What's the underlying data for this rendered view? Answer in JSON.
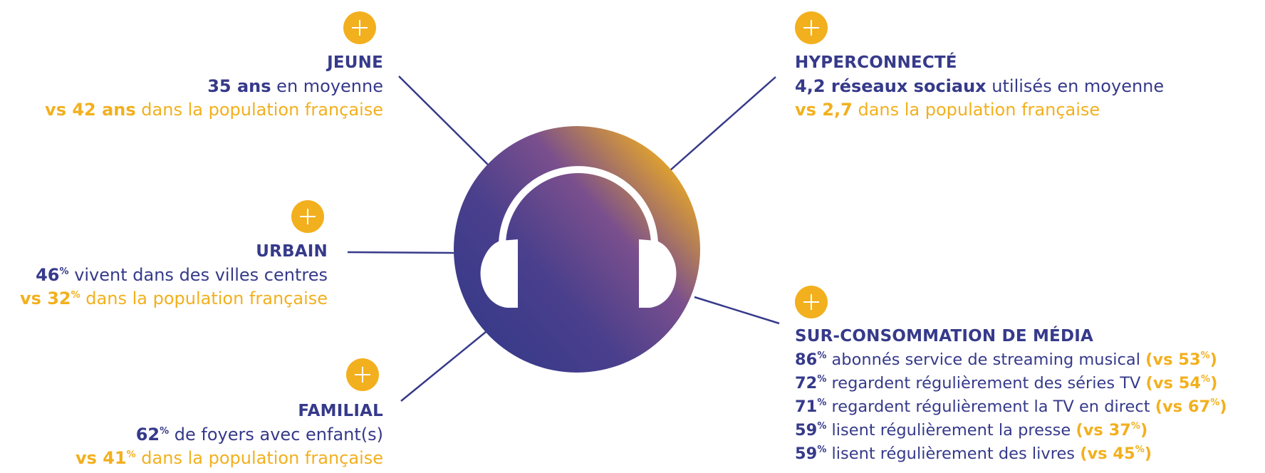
{
  "colors": {
    "navy": "#363a8a",
    "gold": "#f2b01e",
    "purple": "#7a4f8d"
  },
  "icons": {
    "center": "headphones-icon",
    "plus": "plus-icon"
  },
  "jeune": {
    "title": "JEUNE",
    "line1_bold": "35 ans",
    "line1_rest": "en moyenne",
    "line2_bold": "vs 42 ans",
    "line2_rest": "dans la population française"
  },
  "urbain": {
    "title": "URBAIN",
    "line1_value": "46",
    "line1_unit": "%",
    "line1_rest": "vivent dans des villes centres",
    "line2_prefix": "vs 32",
    "line2_unit": "%",
    "line2_rest": "dans la population française"
  },
  "familial": {
    "title": "FAMILIAL",
    "line1_value": "62",
    "line1_unit": "%",
    "line1_rest": "de foyers avec enfant(s)",
    "line2_prefix": "vs 41",
    "line2_unit": "%",
    "line2_rest": "dans la population française"
  },
  "hyperconnecte": {
    "title": "HYPERCONNECTÉ",
    "line1_bold": "4,2 réseaux sociaux",
    "line1_rest": "utilisés en moyenne",
    "line2_bold": "vs 2,7",
    "line2_rest": "dans la population française"
  },
  "media": {
    "title": "SUR-CONSOMMATION DE MÉDIA",
    "rows": [
      {
        "value": "86",
        "unit": "%",
        "text": "abonnés service de streaming musical",
        "cmp_prefix": "(vs 53",
        "cmp_unit": "%",
        "cmp_suffix": ")"
      },
      {
        "value": "72",
        "unit": "%",
        "text": "regardent régulièrement des séries TV",
        "cmp_prefix": "(vs 54",
        "cmp_unit": "%",
        "cmp_suffix": ")"
      },
      {
        "value": "71",
        "unit": "%",
        "text": "regardent régulièrement la TV en direct",
        "cmp_prefix": "(vs 67",
        "cmp_unit": "%",
        "cmp_suffix": ")"
      },
      {
        "value": "59",
        "unit": "%",
        "text": "lisent régulièrement la presse",
        "cmp_prefix": "(vs 37",
        "cmp_unit": "%",
        "cmp_suffix": ")"
      },
      {
        "value": "59",
        "unit": "%",
        "text": "lisent régulièrement des livres",
        "cmp_prefix": "(vs 45",
        "cmp_unit": "%",
        "cmp_suffix": ")"
      }
    ]
  }
}
